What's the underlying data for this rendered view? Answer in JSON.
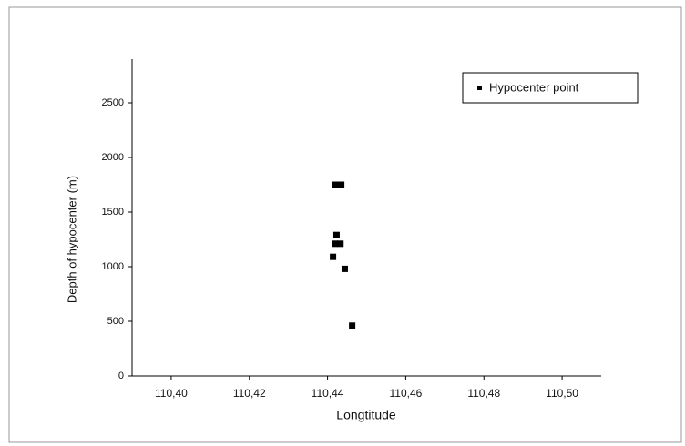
{
  "chart_data": {
    "type": "scatter",
    "x_label": "Longtitude",
    "y_label": "Depth of hypocenter (m)",
    "series": [
      {
        "name": "Hypocenter point",
        "color": "#000000",
        "x": [
          110.442,
          110.4435,
          110.4423,
          110.4419,
          110.4433,
          110.4414,
          110.4444,
          110.4463
        ],
        "values": [
          1750,
          1750,
          1290,
          1210,
          1210,
          1090,
          980,
          460
        ]
      }
    ],
    "xlim": [
      110.39,
      110.51
    ],
    "xticks": [
      {
        "value": 110.4,
        "label": "110,40"
      },
      {
        "value": 110.42,
        "label": "110,42"
      },
      {
        "value": 110.44,
        "label": "110,44"
      },
      {
        "value": 110.46,
        "label": "110,46"
      },
      {
        "value": 110.48,
        "label": "110,48"
      },
      {
        "value": 110.5,
        "label": "110,50"
      }
    ],
    "ylim": [
      0,
      2900
    ],
    "yticks": [
      0,
      500,
      1000,
      1500,
      2000,
      2500
    ],
    "legend": "top-right"
  }
}
